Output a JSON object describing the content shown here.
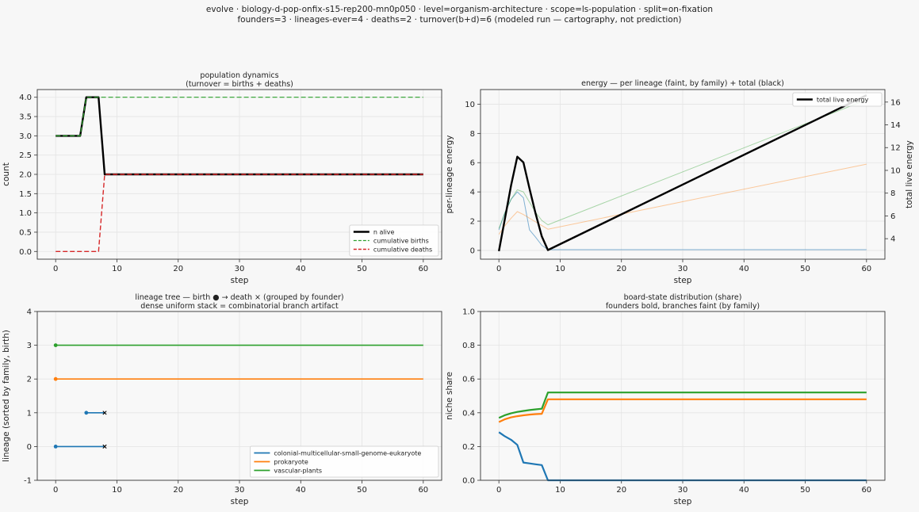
{
  "suptitle": {
    "line1": "evolve · biology-d-pop-onfix-s15-rep200-mn0p050 · level=organism-architecture · scope=ls-population · split=on-fixation",
    "line2": "founders=3 · lineages-ever=4 · deaths=2 · turnover(b+d)=6   (modeled run — cartography, not prediction)"
  },
  "colors": {
    "blue": "#1f77b4",
    "orange": "#ff7f0e",
    "green": "#2ca02c",
    "red": "#d62728",
    "black": "#000000",
    "grid": "#e4e4e4"
  },
  "chart_data": [
    {
      "id": "population",
      "type": "line",
      "title": "population dynamics",
      "subtitle": "(turnover = births + deaths)",
      "xlabel": "step",
      "ylabel": "count",
      "xlim": [
        -3,
        63
      ],
      "ylim": [
        -0.2,
        4.2
      ],
      "xticks": [
        0,
        10,
        20,
        30,
        40,
        50,
        60
      ],
      "yticks": [
        0.0,
        0.5,
        1.0,
        1.5,
        2.0,
        2.5,
        3.0,
        3.5,
        4.0
      ],
      "grid": true,
      "legend": "lower-right",
      "series": [
        {
          "name": "n alive",
          "color": "black",
          "style": "solid",
          "width": 2.4,
          "points": [
            [
              0,
              3
            ],
            [
              4,
              3
            ],
            [
              5,
              4
            ],
            [
              7,
              4
            ],
            [
              8,
              2
            ],
            [
              60,
              2
            ]
          ]
        },
        {
          "name": "cumulative births",
          "color": "green",
          "style": "dashed",
          "width": 1.2,
          "points": [
            [
              0,
              3
            ],
            [
              4,
              3
            ],
            [
              5,
              4
            ],
            [
              60,
              4
            ]
          ]
        },
        {
          "name": "cumulative deaths",
          "color": "red",
          "style": "dashed",
          "width": 1.4,
          "points": [
            [
              0,
              0
            ],
            [
              7,
              0
            ],
            [
              8,
              2
            ],
            [
              60,
              2
            ]
          ]
        }
      ]
    },
    {
      "id": "energy",
      "type": "line",
      "title": "energy — per lineage (faint, by family) + total (black)",
      "xlabel": "step",
      "ylabel": "per-lineage energy",
      "ylabel_right": "total live energy",
      "xlim": [
        -3,
        63
      ],
      "ylim": [
        -0.6,
        11
      ],
      "ylim_right": [
        2.2,
        17.1
      ],
      "xticks": [
        0,
        10,
        20,
        30,
        40,
        50,
        60
      ],
      "yticks": [
        0,
        2,
        4,
        6,
        8,
        10
      ],
      "yticks_right": [
        4,
        6,
        8,
        10,
        12,
        14,
        16
      ],
      "grid": true,
      "legend": "upper-right",
      "series": [
        {
          "name": "",
          "color": "blue",
          "axis": "left",
          "style": "solid",
          "width": 1,
          "alpha": 0.55,
          "points": [
            [
              0,
              1.4
            ],
            [
              1,
              2.6
            ],
            [
              2,
              3.5
            ],
            [
              3,
              4.0
            ],
            [
              4,
              3.6
            ],
            [
              5,
              1.4
            ],
            [
              6,
              0.9
            ],
            [
              7,
              0.35
            ],
            [
              8,
              0.05
            ],
            [
              60,
              0.05
            ]
          ]
        },
        {
          "name": "",
          "color": "orange",
          "axis": "left",
          "style": "solid",
          "width": 1,
          "alpha": 0.4,
          "points": [
            [
              0,
              1.1
            ],
            [
              1,
              1.7
            ],
            [
              2,
              2.2
            ],
            [
              3,
              2.65
            ],
            [
              4,
              2.45
            ],
            [
              5,
              2.2
            ],
            [
              6,
              1.95
            ],
            [
              7,
              1.7
            ],
            [
              8,
              1.45
            ],
            [
              60,
              5.9
            ]
          ]
        },
        {
          "name": "",
          "color": "green",
          "axis": "left",
          "style": "solid",
          "width": 1,
          "alpha": 0.4,
          "points": [
            [
              0,
              1.5
            ],
            [
              1,
              2.6
            ],
            [
              2,
              3.5
            ],
            [
              3,
              4.15
            ],
            [
              4,
              4.0
            ],
            [
              5,
              3.3
            ],
            [
              6,
              2.6
            ],
            [
              7,
              2.05
            ],
            [
              8,
              1.75
            ],
            [
              60,
              10.3
            ]
          ]
        },
        {
          "name": "total live energy",
          "color": "black",
          "axis": "right",
          "style": "solid",
          "width": 2.4,
          "points": [
            [
              0,
              2.9
            ],
            [
              1,
              5.8
            ],
            [
              2,
              8.7
            ],
            [
              3,
              11.2
            ],
            [
              4,
              10.7
            ],
            [
              5,
              8.4
            ],
            [
              6,
              6.2
            ],
            [
              7,
              4.2
            ],
            [
              8,
              3.0
            ],
            [
              60,
              16.6
            ]
          ]
        }
      ]
    },
    {
      "id": "tree",
      "type": "line",
      "title": "lineage tree — birth ● → death ×  (grouped by founder)",
      "subtitle": "dense uniform stack = combinatorial branch artifact",
      "xlabel": "step",
      "ylabel": "lineage (sorted by family, birth)",
      "xlim": [
        -3,
        63
      ],
      "ylim": [
        -1,
        4
      ],
      "xticks": [
        0,
        10,
        20,
        30,
        40,
        50,
        60
      ],
      "yticks": [
        -1,
        0,
        1,
        2,
        3,
        4
      ],
      "grid": true,
      "legend": "lower-right",
      "legend_entries": [
        {
          "name": "colonial-multicellular-small-genome-eukaryote",
          "color": "blue"
        },
        {
          "name": "prokaryote",
          "color": "orange"
        },
        {
          "name": "vascular-plants",
          "color": "green"
        }
      ],
      "segments": [
        {
          "lineage": 0,
          "birth": 0,
          "death": 8,
          "color": "blue",
          "died": true
        },
        {
          "lineage": 1,
          "birth": 5,
          "death": 8,
          "color": "blue",
          "died": true
        },
        {
          "lineage": 2,
          "birth": 0,
          "death": 60,
          "color": "orange",
          "died": false
        },
        {
          "lineage": 3,
          "birth": 0,
          "death": 60,
          "color": "green",
          "died": false
        }
      ]
    },
    {
      "id": "share",
      "type": "line",
      "title": "board-state distribution (share)",
      "subtitle": "founders bold, branches faint (by family)",
      "xlabel": "step",
      "ylabel": "niche share",
      "xlim": [
        -3,
        63
      ],
      "ylim": [
        0,
        1
      ],
      "xticks": [
        0,
        10,
        20,
        30,
        40,
        50,
        60
      ],
      "yticks": [
        0.0,
        0.2,
        0.4,
        0.6,
        0.8,
        1.0
      ],
      "grid": true,
      "series": [
        {
          "name": "",
          "color": "blue",
          "style": "solid",
          "width": 2.2,
          "points": [
            [
              0,
              0.285
            ],
            [
              1,
              0.26
            ],
            [
              2,
              0.24
            ],
            [
              3,
              0.21
            ],
            [
              4,
              0.105
            ],
            [
              5,
              0.1
            ],
            [
              6,
              0.095
            ],
            [
              7,
              0.09
            ],
            [
              8,
              0.0
            ],
            [
              60,
              0.0
            ]
          ]
        },
        {
          "name": "",
          "color": "orange",
          "style": "solid",
          "width": 2.2,
          "points": [
            [
              0,
              0.345
            ],
            [
              1,
              0.362
            ],
            [
              2,
              0.373
            ],
            [
              3,
              0.38
            ],
            [
              4,
              0.385
            ],
            [
              5,
              0.389
            ],
            [
              6,
              0.392
            ],
            [
              7,
              0.394
            ],
            [
              8,
              0.48
            ],
            [
              60,
              0.48
            ]
          ]
        },
        {
          "name": "",
          "color": "green",
          "style": "solid",
          "width": 2.2,
          "points": [
            [
              0,
              0.37
            ],
            [
              1,
              0.386
            ],
            [
              2,
              0.397
            ],
            [
              3,
              0.405
            ],
            [
              4,
              0.411
            ],
            [
              5,
              0.416
            ],
            [
              6,
              0.42
            ],
            [
              7,
              0.424
            ],
            [
              8,
              0.52
            ],
            [
              60,
              0.52
            ]
          ]
        }
      ]
    }
  ]
}
